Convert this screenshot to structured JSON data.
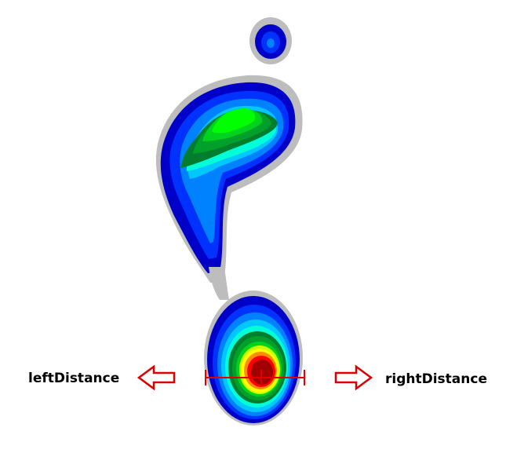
{
  "labels": {
    "left": "leftDistance",
    "right": "rightDistance"
  },
  "icons": {
    "left_arrow": "arrow-left-outline-icon",
    "right_arrow": "arrow-right-outline-icon"
  },
  "colors": {
    "outline": "#bdbdbd",
    "level_1": "#0000c8",
    "level_2": "#0032ff",
    "level_3": "#0082ff",
    "level_4": "#00c8ff",
    "level_5": "#00ffd8",
    "level_6": "#007d2d",
    "level_7": "#00a02a",
    "level_8": "#00d21e",
    "level_9": "#00ff00",
    "level_10": "#c8ff00",
    "level_11": "#ffff00",
    "level_12": "#ff8c00",
    "level_13": "#ff0000",
    "level_14": "#a00000",
    "measure": "#e00000",
    "arrow": "#dd0000"
  }
}
